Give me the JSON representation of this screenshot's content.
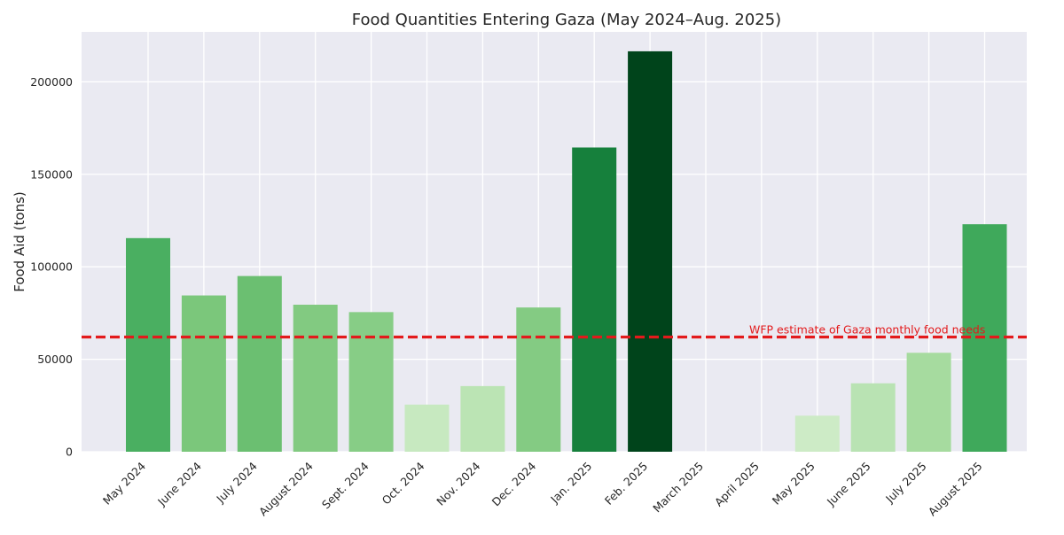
{
  "chart_data": {
    "type": "bar",
    "title": "Food Quantities Entering Gaza (May 2024–Aug. 2025)",
    "xlabel": "",
    "ylabel": "Food Aid (tons)",
    "categories": [
      "May 2024",
      "June 2024",
      "July 2024",
      "August 2024",
      "Sept. 2024",
      "Oct. 2024",
      "Nov. 2024",
      "Dec. 2024",
      "Jan. 2025",
      "Feb. 2025",
      "March 2025",
      "April 2025",
      "May 2025",
      "June 2025",
      "July 2025",
      "August 2025"
    ],
    "values": [
      115500,
      84500,
      95000,
      79500,
      75500,
      25500,
      35500,
      78000,
      164500,
      216500,
      0,
      0,
      19500,
      37000,
      53500,
      123000
    ],
    "ylim": [
      0,
      227000
    ],
    "yticks": [
      "0",
      "50000",
      "100000",
      "150000",
      "200000"
    ],
    "ytick_values": [
      0,
      50000,
      100000,
      150000,
      200000
    ],
    "grid": true,
    "colormap": "Greens",
    "background": "#eaeaf2",
    "reference_line": {
      "value": 62000,
      "label": "WFP estimate of Gaza monthly food needs",
      "color": "#e31a1c",
      "style": "dashed"
    }
  }
}
